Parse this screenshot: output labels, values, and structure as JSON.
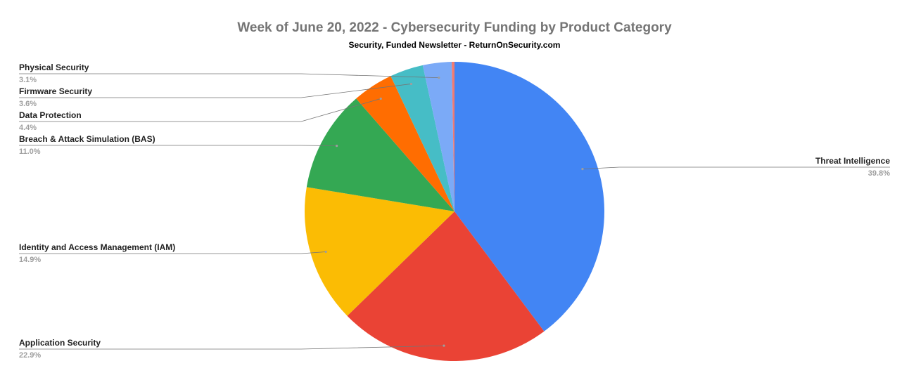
{
  "chart_data": {
    "type": "pie",
    "title": "Week of June 20, 2022 - Cybersecurity Funding by Product Category",
    "subtitle": "Security, Funded Newsletter - ReturnOnSecurity.com",
    "start_angle_deg": 0,
    "direction": "clockwise",
    "slices": [
      {
        "name": "Threat Intelligence",
        "value": 39.8,
        "label": "39.8%",
        "color": "#4285F4",
        "side": "right"
      },
      {
        "name": "Application Security",
        "value": 22.9,
        "label": "22.9%",
        "color": "#EA4335",
        "side": "left"
      },
      {
        "name": "Identity and Access Management (IAM)",
        "value": 14.9,
        "label": "14.9%",
        "color": "#FBBC04",
        "side": "left"
      },
      {
        "name": "Breach & Attack Simulation (BAS)",
        "value": 11.0,
        "label": "11.0%",
        "color": "#34A853",
        "side": "left"
      },
      {
        "name": "Data Protection",
        "value": 4.4,
        "label": "4.4%",
        "color": "#FF6D01",
        "side": "left"
      },
      {
        "name": "Firmware Security",
        "value": 3.6,
        "label": "3.6%",
        "color": "#46BDC6",
        "side": "left"
      },
      {
        "name": "Physical Security",
        "value": 3.1,
        "label": "3.1%",
        "color": "#7BAAF7",
        "side": "left"
      },
      {
        "name": "",
        "value": 0.3,
        "label": "",
        "color": "#F07B72",
        "side": "none"
      }
    ]
  }
}
